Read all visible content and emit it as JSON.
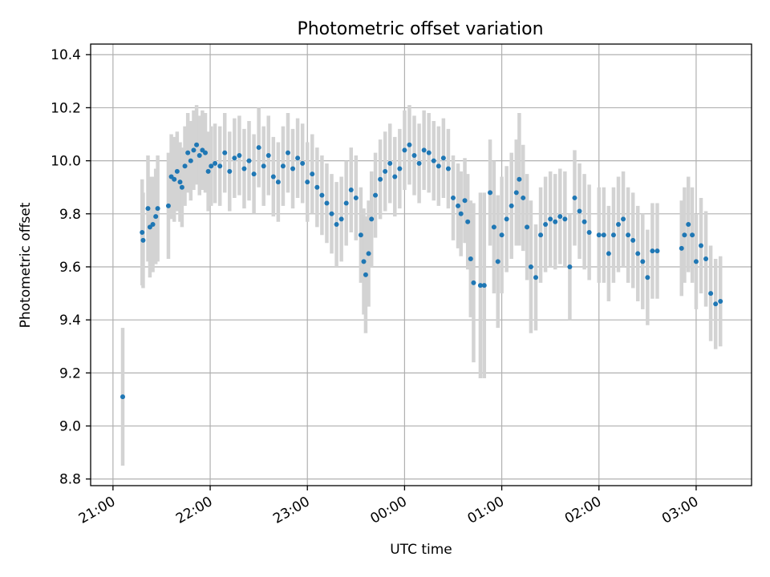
{
  "chart_data": {
    "type": "scatter",
    "title": "Photometric offset variation",
    "xlabel": "UTC time",
    "ylabel": "Photometric offset",
    "x_unit": "UTC time (hours; values after 24 are after midnight)",
    "xlim": [
      20.77,
      27.57
    ],
    "ylim": [
      8.775,
      10.44
    ],
    "xticks": [
      21,
      22,
      23,
      24,
      25,
      26,
      27
    ],
    "xtick_labels": [
      "21:00",
      "22:00",
      "23:00",
      "00:00",
      "01:00",
      "02:00",
      "03:00"
    ],
    "yticks": [
      8.8,
      9.0,
      9.2,
      9.4,
      9.6,
      9.8,
      10.0,
      10.2,
      10.4
    ],
    "ytick_labels": [
      "8.8",
      "9.0",
      "9.2",
      "9.4",
      "9.6",
      "9.8",
      "10.0",
      "10.2",
      "10.4"
    ],
    "grid": true,
    "marker_color": "#1f77b4",
    "errorbar_color": "#d3d3d3",
    "series": [
      {
        "points": [
          [
            21.1,
            9.11,
            0.26
          ],
          [
            21.3,
            9.73,
            0.2
          ],
          [
            21.31,
            9.7,
            0.18
          ],
          [
            21.36,
            9.82,
            0.2
          ],
          [
            21.38,
            9.75,
            0.19
          ],
          [
            21.41,
            9.76,
            0.18
          ],
          [
            21.44,
            9.79,
            0.18
          ],
          [
            21.46,
            9.82,
            0.2
          ],
          [
            21.57,
            9.83,
            0.2
          ],
          [
            21.6,
            9.94,
            0.16
          ],
          [
            21.63,
            9.93,
            0.16
          ],
          [
            21.66,
            9.96,
            0.15
          ],
          [
            21.69,
            9.92,
            0.15
          ],
          [
            21.71,
            9.9,
            0.15
          ],
          [
            21.74,
            9.98,
            0.15
          ],
          [
            21.77,
            10.03,
            0.15
          ],
          [
            21.8,
            10.0,
            0.15
          ],
          [
            21.83,
            10.04,
            0.15
          ],
          [
            21.86,
            10.06,
            0.15
          ],
          [
            21.89,
            10.02,
            0.15
          ],
          [
            21.92,
            10.04,
            0.15
          ],
          [
            21.95,
            10.03,
            0.15
          ],
          [
            21.98,
            9.96,
            0.15
          ],
          [
            22.01,
            9.98,
            0.15
          ],
          [
            22.05,
            9.99,
            0.15
          ],
          [
            22.1,
            9.98,
            0.15
          ],
          [
            22.15,
            10.03,
            0.15
          ],
          [
            22.2,
            9.96,
            0.15
          ],
          [
            22.25,
            10.01,
            0.15
          ],
          [
            22.3,
            10.02,
            0.15
          ],
          [
            22.35,
            9.97,
            0.15
          ],
          [
            22.4,
            10.0,
            0.15
          ],
          [
            22.45,
            9.95,
            0.15
          ],
          [
            22.5,
            10.05,
            0.15
          ],
          [
            22.55,
            9.98,
            0.15
          ],
          [
            22.6,
            10.02,
            0.15
          ],
          [
            22.65,
            9.94,
            0.15
          ],
          [
            22.7,
            9.92,
            0.15
          ],
          [
            22.75,
            9.98,
            0.15
          ],
          [
            22.8,
            10.03,
            0.15
          ],
          [
            22.85,
            9.97,
            0.15
          ],
          [
            22.9,
            10.01,
            0.15
          ],
          [
            22.95,
            9.99,
            0.15
          ],
          [
            23.0,
            9.92,
            0.15
          ],
          [
            23.05,
            9.95,
            0.15
          ],
          [
            23.1,
            9.9,
            0.15
          ],
          [
            23.15,
            9.87,
            0.15
          ],
          [
            23.2,
            9.84,
            0.15
          ],
          [
            23.25,
            9.8,
            0.15
          ],
          [
            23.3,
            9.76,
            0.16
          ],
          [
            23.35,
            9.78,
            0.16
          ],
          [
            23.4,
            9.84,
            0.16
          ],
          [
            23.45,
            9.89,
            0.16
          ],
          [
            23.5,
            9.86,
            0.16
          ],
          [
            23.55,
            9.72,
            0.18
          ],
          [
            23.58,
            9.62,
            0.2
          ],
          [
            23.6,
            9.57,
            0.22
          ],
          [
            23.63,
            9.65,
            0.2
          ],
          [
            23.66,
            9.78,
            0.18
          ],
          [
            23.7,
            9.87,
            0.16
          ],
          [
            23.75,
            9.93,
            0.15
          ],
          [
            23.8,
            9.96,
            0.15
          ],
          [
            23.85,
            9.99,
            0.15
          ],
          [
            23.9,
            9.94,
            0.15
          ],
          [
            23.95,
            9.97,
            0.15
          ],
          [
            24.0,
            10.04,
            0.15
          ],
          [
            24.05,
            10.06,
            0.15
          ],
          [
            24.1,
            10.02,
            0.15
          ],
          [
            24.15,
            9.99,
            0.15
          ],
          [
            24.2,
            10.04,
            0.15
          ],
          [
            24.25,
            10.03,
            0.15
          ],
          [
            24.3,
            10.0,
            0.15
          ],
          [
            24.35,
            9.98,
            0.15
          ],
          [
            24.4,
            10.01,
            0.15
          ],
          [
            24.45,
            9.97,
            0.15
          ],
          [
            24.5,
            9.86,
            0.16
          ],
          [
            24.55,
            9.83,
            0.16
          ],
          [
            24.58,
            9.8,
            0.16
          ],
          [
            24.62,
            9.85,
            0.16
          ],
          [
            24.65,
            9.77,
            0.18
          ],
          [
            24.68,
            9.63,
            0.22
          ],
          [
            24.71,
            9.54,
            0.3
          ],
          [
            24.78,
            9.53,
            0.35
          ],
          [
            24.82,
            9.53,
            0.35
          ],
          [
            24.88,
            9.88,
            0.2
          ],
          [
            24.92,
            9.75,
            0.25
          ],
          [
            24.96,
            9.62,
            0.25
          ],
          [
            25.0,
            9.72,
            0.22
          ],
          [
            25.05,
            9.78,
            0.2
          ],
          [
            25.1,
            9.83,
            0.2
          ],
          [
            25.15,
            9.88,
            0.2
          ],
          [
            25.18,
            9.93,
            0.25
          ],
          [
            25.22,
            9.86,
            0.2
          ],
          [
            25.26,
            9.75,
            0.2
          ],
          [
            25.3,
            9.6,
            0.25
          ],
          [
            25.35,
            9.56,
            0.2
          ],
          [
            25.4,
            9.72,
            0.18
          ],
          [
            25.45,
            9.76,
            0.18
          ],
          [
            25.5,
            9.78,
            0.18
          ],
          [
            25.55,
            9.77,
            0.18
          ],
          [
            25.6,
            9.79,
            0.18
          ],
          [
            25.65,
            9.78,
            0.18
          ],
          [
            25.7,
            9.6,
            0.2
          ],
          [
            25.75,
            9.86,
            0.18
          ],
          [
            25.8,
            9.81,
            0.18
          ],
          [
            25.85,
            9.77,
            0.18
          ],
          [
            25.9,
            9.73,
            0.18
          ],
          [
            26.0,
            9.72,
            0.18
          ],
          [
            26.05,
            9.72,
            0.18
          ],
          [
            26.1,
            9.65,
            0.18
          ],
          [
            26.15,
            9.72,
            0.18
          ],
          [
            26.2,
            9.76,
            0.18
          ],
          [
            26.25,
            9.78,
            0.18
          ],
          [
            26.3,
            9.72,
            0.18
          ],
          [
            26.35,
            9.7,
            0.18
          ],
          [
            26.4,
            9.65,
            0.18
          ],
          [
            26.45,
            9.62,
            0.18
          ],
          [
            26.5,
            9.56,
            0.18
          ],
          [
            26.55,
            9.66,
            0.18
          ],
          [
            26.6,
            9.66,
            0.18
          ],
          [
            26.85,
            9.67,
            0.18
          ],
          [
            26.88,
            9.72,
            0.18
          ],
          [
            26.92,
            9.76,
            0.18
          ],
          [
            26.96,
            9.72,
            0.18
          ],
          [
            27.0,
            9.62,
            0.18
          ],
          [
            27.05,
            9.68,
            0.18
          ],
          [
            27.1,
            9.63,
            0.18
          ],
          [
            27.15,
            9.5,
            0.18
          ],
          [
            27.2,
            9.46,
            0.17
          ],
          [
            27.25,
            9.47,
            0.17
          ]
        ]
      }
    ]
  }
}
